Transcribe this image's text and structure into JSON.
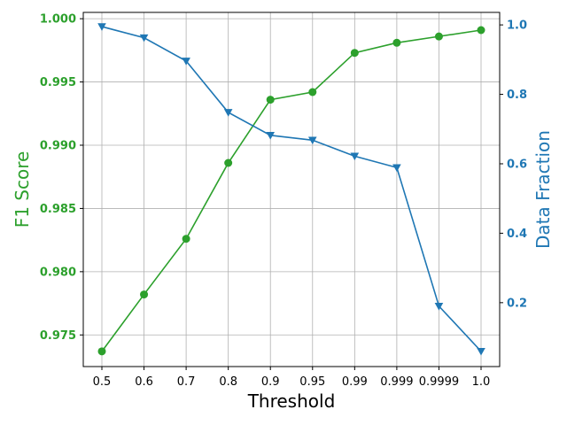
{
  "chart_data": {
    "type": "line",
    "xlabel": "Threshold",
    "categories": [
      "0.5",
      "0.6",
      "0.7",
      "0.8",
      "0.9",
      "0.95",
      "0.99",
      "0.999",
      "0.9999",
      "1.0"
    ],
    "grid": true,
    "y_left": {
      "label": "F1 Score",
      "color": "#2ca02c",
      "ylim": [
        0.9725,
        1.0005
      ],
      "ticks": [
        "0.975",
        "0.980",
        "0.985",
        "0.990",
        "0.995",
        "1.000"
      ]
    },
    "y_right": {
      "label": "Data Fraction",
      "color": "#1f77b4",
      "ylim": [
        0.016,
        1.036
      ],
      "ticks": [
        "0.2",
        "0.4",
        "0.6",
        "0.8",
        "1.0"
      ]
    },
    "series": [
      {
        "axis": "left",
        "color": "#2ca02c",
        "marker": "circle",
        "values": [
          0.9737,
          0.9782,
          0.9826,
          0.9886,
          0.9936,
          0.9942,
          0.9973,
          0.9981,
          0.9986,
          0.9991
        ]
      },
      {
        "axis": "right",
        "color": "#1f77b4",
        "marker": "triangle-down",
        "values": [
          0.995,
          0.963,
          0.896,
          0.748,
          0.682,
          0.668,
          0.622,
          0.589,
          0.19,
          0.06
        ]
      }
    ]
  }
}
